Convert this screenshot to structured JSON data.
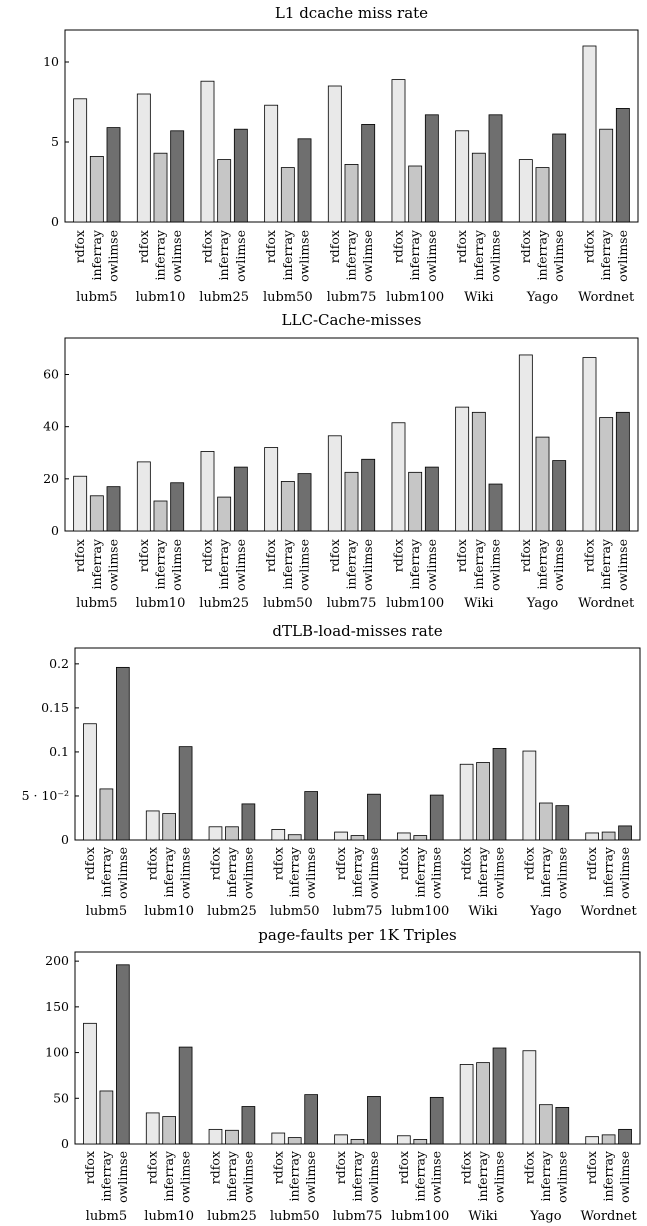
{
  "colors": {
    "rdfox": "#e9e9e9",
    "inferray": "#c6c6c6",
    "owlimse": "#6f6f6f"
  },
  "chart_data": [
    {
      "type": "bar",
      "title": "L1 dcache miss rate",
      "categories": [
        "lubm5",
        "lubm10",
        "lubm25",
        "lubm50",
        "lubm75",
        "lubm100",
        "Wiki",
        "Yago",
        "Wordnet"
      ],
      "series": [
        {
          "name": "rdfox",
          "values": [
            7.7,
            8.0,
            8.8,
            7.3,
            8.5,
            8.9,
            5.7,
            3.9,
            11.0
          ]
        },
        {
          "name": "inferray",
          "values": [
            4.1,
            4.3,
            3.9,
            3.4,
            3.6,
            3.5,
            4.3,
            3.4,
            5.8
          ]
        },
        {
          "name": "owlimse",
          "values": [
            5.9,
            5.7,
            5.8,
            5.2,
            6.1,
            6.7,
            6.7,
            5.5,
            7.1
          ]
        }
      ],
      "ylim": [
        0,
        12
      ],
      "yticks": [
        0,
        5,
        10
      ],
      "yticklabels": [
        "0",
        "5",
        "10"
      ],
      "xlabel": "",
      "ylabel": ""
    },
    {
      "type": "bar",
      "title": "LLC-Cache-misses",
      "categories": [
        "lubm5",
        "lubm10",
        "lubm25",
        "lubm50",
        "lubm75",
        "lubm100",
        "Wiki",
        "Yago",
        "Wordnet"
      ],
      "series": [
        {
          "name": "rdfox",
          "values": [
            21,
            26.5,
            30.5,
            32,
            36.5,
            41.5,
            47.5,
            67.5,
            66.5
          ]
        },
        {
          "name": "inferray",
          "values": [
            13.5,
            11.5,
            13,
            19,
            22.5,
            22.5,
            45.5,
            36,
            43.5
          ]
        },
        {
          "name": "owlimse",
          "values": [
            17,
            18.5,
            24.5,
            22,
            27.5,
            24.5,
            18,
            27,
            45.5
          ]
        }
      ],
      "ylim": [
        0,
        74
      ],
      "yticks": [
        0,
        20,
        40,
        60
      ],
      "yticklabels": [
        "0",
        "20",
        "40",
        "60"
      ],
      "xlabel": "",
      "ylabel": ""
    },
    {
      "type": "bar",
      "title": "dTLB-load-misses rate",
      "categories": [
        "lubm5",
        "lubm10",
        "lubm25",
        "lubm50",
        "lubm75",
        "lubm100",
        "Wiki",
        "Yago",
        "Wordnet"
      ],
      "series": [
        {
          "name": "rdfox",
          "values": [
            0.132,
            0.033,
            0.015,
            0.012,
            0.009,
            0.008,
            0.086,
            0.101,
            0.008
          ]
        },
        {
          "name": "inferray",
          "values": [
            0.058,
            0.03,
            0.015,
            0.006,
            0.005,
            0.005,
            0.088,
            0.042,
            0.009
          ]
        },
        {
          "name": "owlimse",
          "values": [
            0.196,
            0.106,
            0.041,
            0.055,
            0.052,
            0.051,
            0.104,
            0.039,
            0.016
          ]
        }
      ],
      "ylim": [
        0,
        0.218
      ],
      "yticks": [
        0,
        0.05,
        0.1,
        0.15,
        0.2
      ],
      "yticklabels": [
        "0",
        "5 · 10⁻²",
        "0.1",
        "0.15",
        "0.2"
      ],
      "xlabel": "",
      "ylabel": ""
    },
    {
      "type": "bar",
      "title": "page-faults per 1K Triples",
      "categories": [
        "lubm5",
        "lubm10",
        "lubm25",
        "lubm50",
        "lubm75",
        "lubm100",
        "Wiki",
        "Yago",
        "Wordnet"
      ],
      "series": [
        {
          "name": "rdfox",
          "values": [
            132,
            34,
            16,
            12,
            10,
            9,
            87,
            102,
            8
          ]
        },
        {
          "name": "inferray",
          "values": [
            58,
            30,
            15,
            7,
            5,
            5,
            89,
            43,
            10
          ]
        },
        {
          "name": "owlimse",
          "values": [
            196,
            106,
            41,
            54,
            52,
            51,
            105,
            40,
            16
          ]
        }
      ],
      "ylim": [
        0,
        210
      ],
      "yticks": [
        0,
        50,
        100,
        150,
        200
      ],
      "yticklabels": [
        "0",
        "50",
        "100",
        "150",
        "200"
      ],
      "xlabel": "",
      "ylabel": ""
    }
  ]
}
